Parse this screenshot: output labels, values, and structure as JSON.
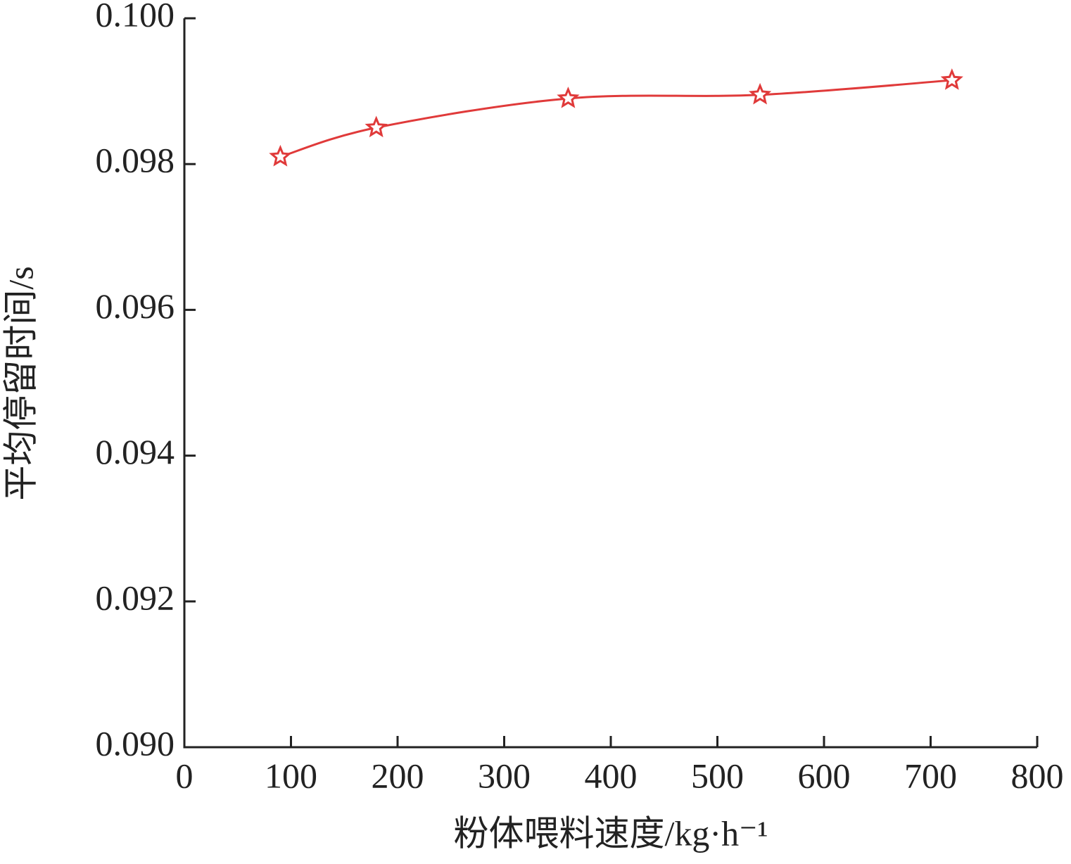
{
  "chart_data": {
    "type": "line",
    "x_label": "粉体喂料速度/kg·h⁻¹",
    "y_label": "平均停留时间/s",
    "x": [
      90,
      180,
      360,
      540,
      720
    ],
    "series": [
      {
        "color": "#e03a3a",
        "marker": "star",
        "values": [
          0.0981,
          0.0985,
          0.0989,
          0.09895,
          0.09915
        ]
      }
    ],
    "xlim": [
      0,
      800
    ],
    "xticks": [
      0,
      100,
      200,
      300,
      400,
      500,
      600,
      700,
      800
    ],
    "ylim": [
      0.09,
      0.1
    ],
    "yticks": [
      {
        "value": 0.09,
        "label": "0.090"
      },
      {
        "value": 0.092,
        "label": "0.092"
      },
      {
        "value": 0.094,
        "label": "0.094"
      },
      {
        "value": 0.096,
        "label": "0.096"
      },
      {
        "value": 0.098,
        "label": "0.098"
      },
      {
        "value": 0.1,
        "label": "0.100"
      }
    ],
    "smooth": true
  }
}
